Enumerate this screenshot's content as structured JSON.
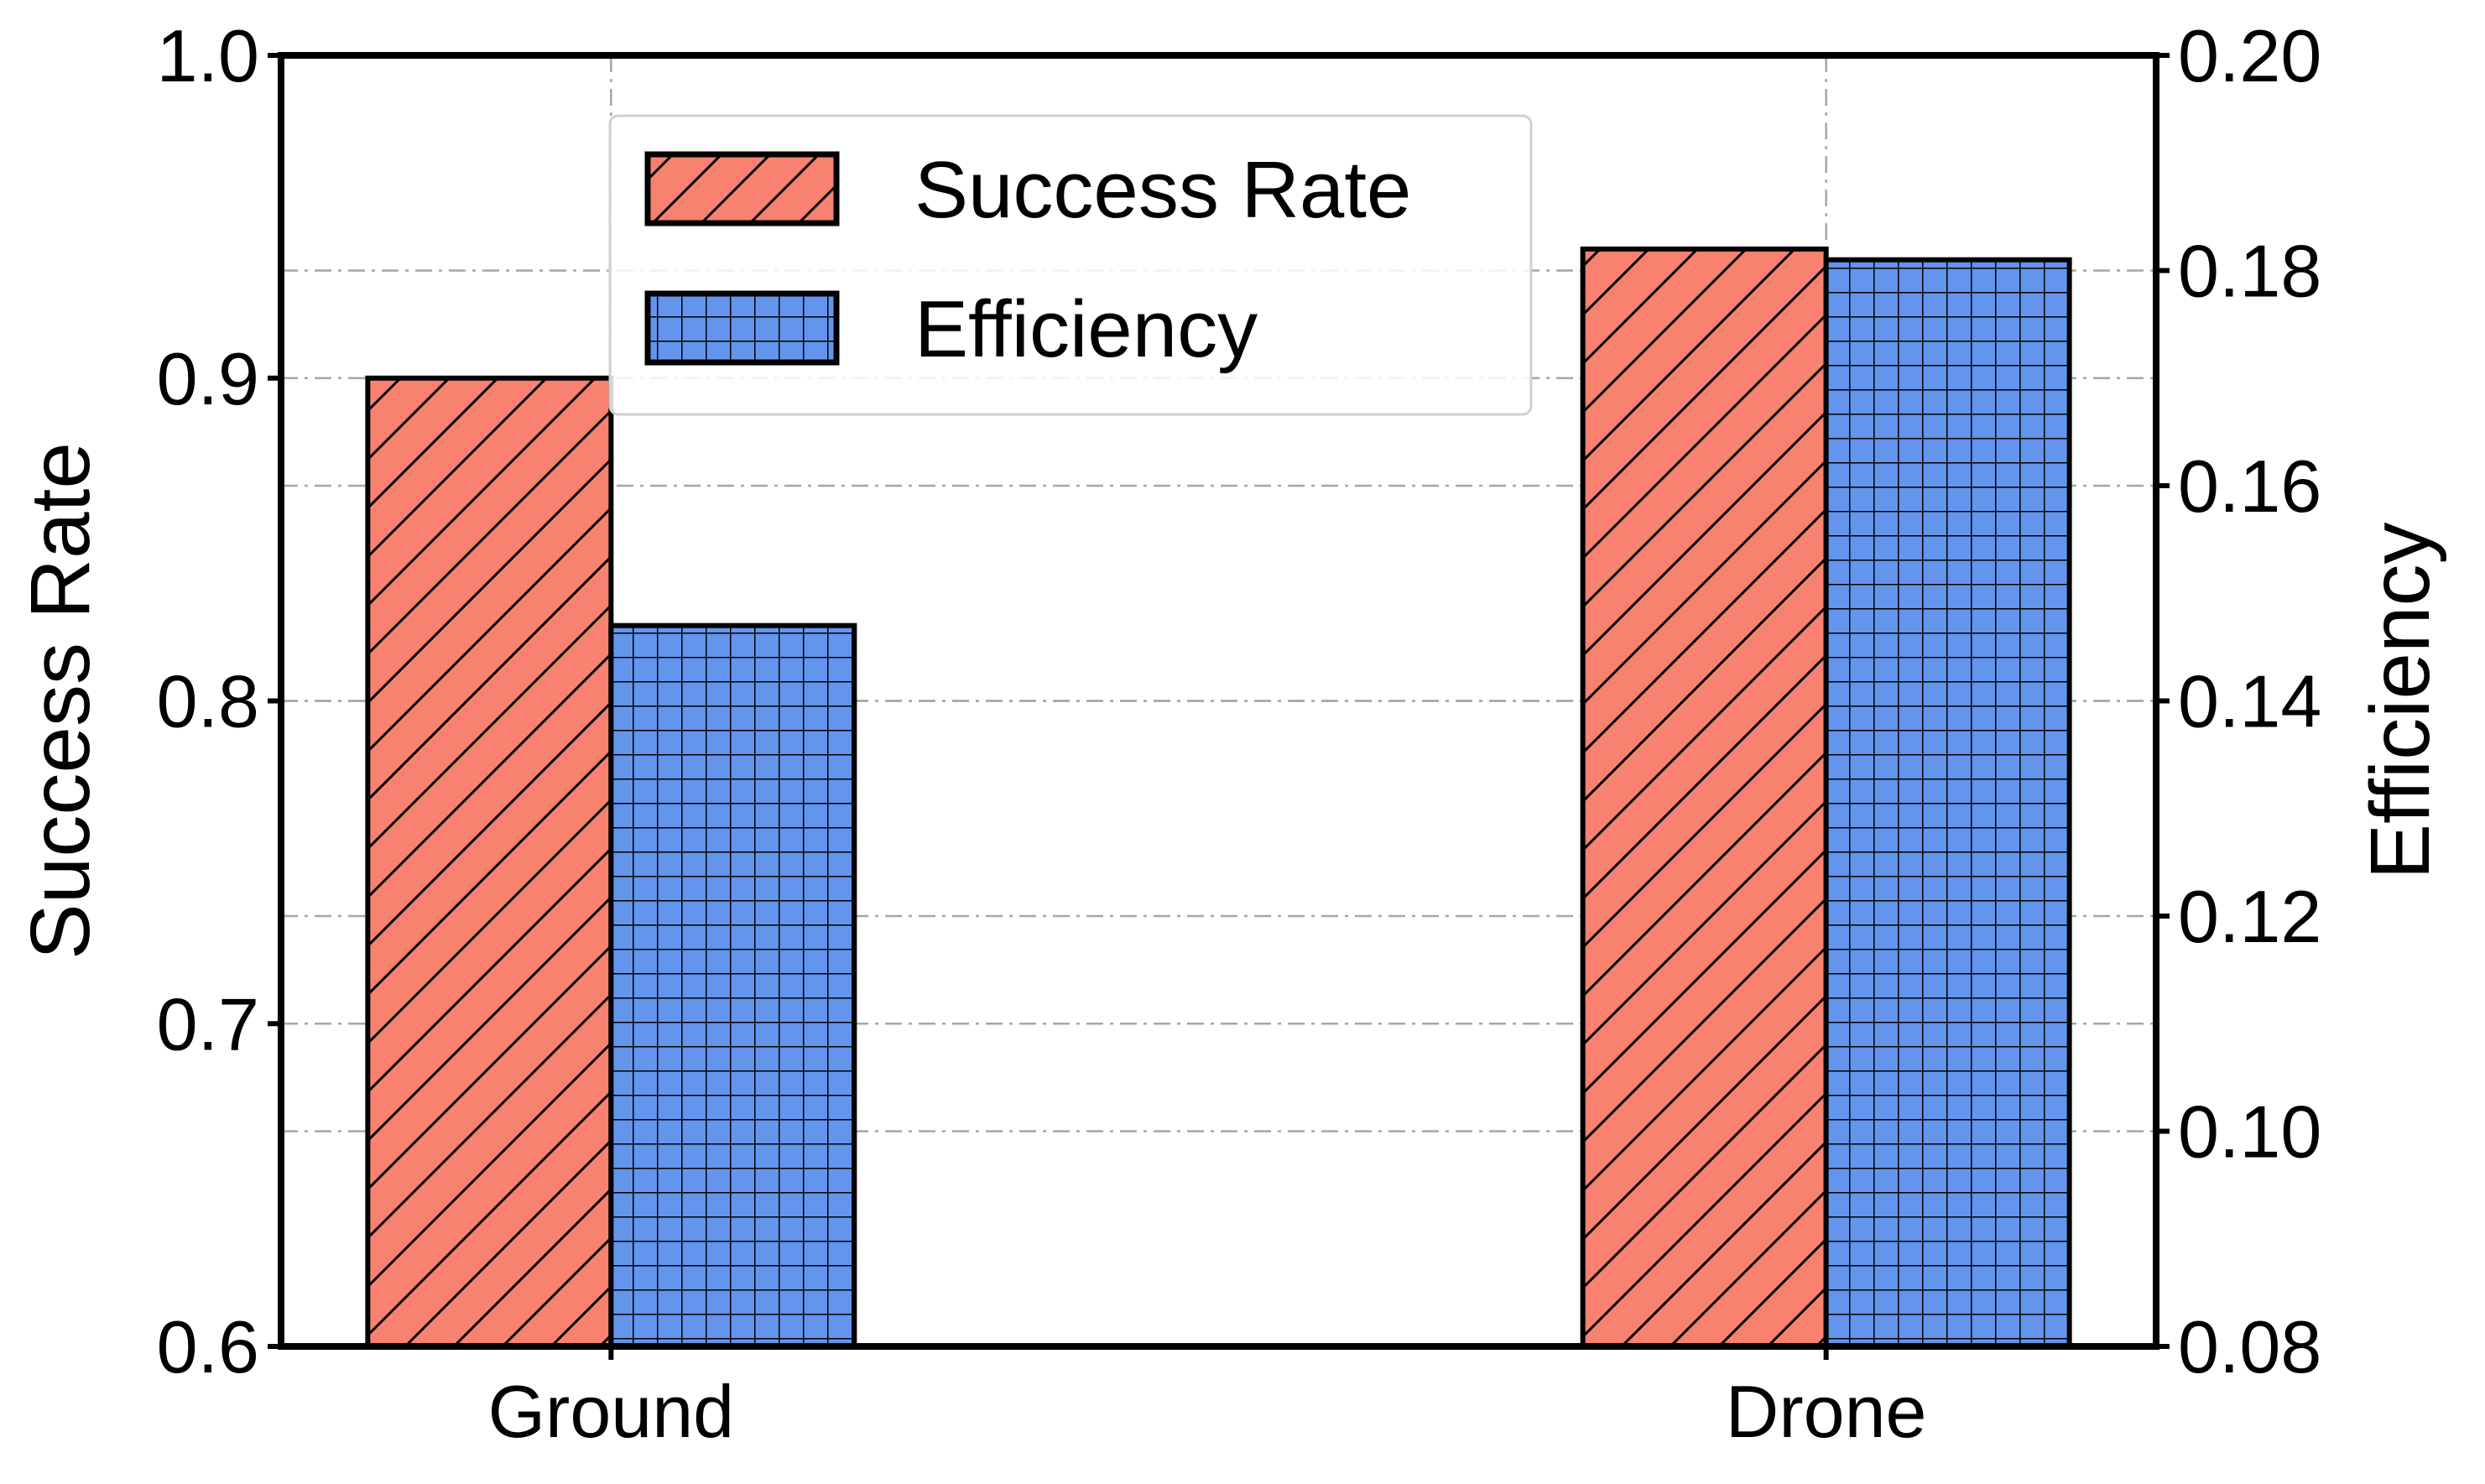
{
  "chart_data": {
    "type": "bar",
    "categories": [
      "Ground",
      "Drone"
    ],
    "series": [
      {
        "name": "Success Rate",
        "axis": "left",
        "color": "#F88170",
        "hatch": "diagonal",
        "values": [
          0.9,
          0.94
        ]
      },
      {
        "name": "Efficiency",
        "axis": "right",
        "color": "#6495ED",
        "hatch": "grid",
        "values": [
          0.147,
          0.181
        ]
      }
    ],
    "y_left": {
      "label": "Success Rate",
      "range": [
        0.6,
        1.0
      ],
      "ticks": [
        "0.6",
        "0.7",
        "0.8",
        "0.9",
        "1.0"
      ]
    },
    "y_right": {
      "label": "Efficiency",
      "range": [
        0.08,
        0.2
      ],
      "ticks": [
        "0.08",
        "0.10",
        "0.12",
        "0.14",
        "0.16",
        "0.18",
        "0.20"
      ]
    },
    "grid": true,
    "legend_position": "top-center"
  }
}
